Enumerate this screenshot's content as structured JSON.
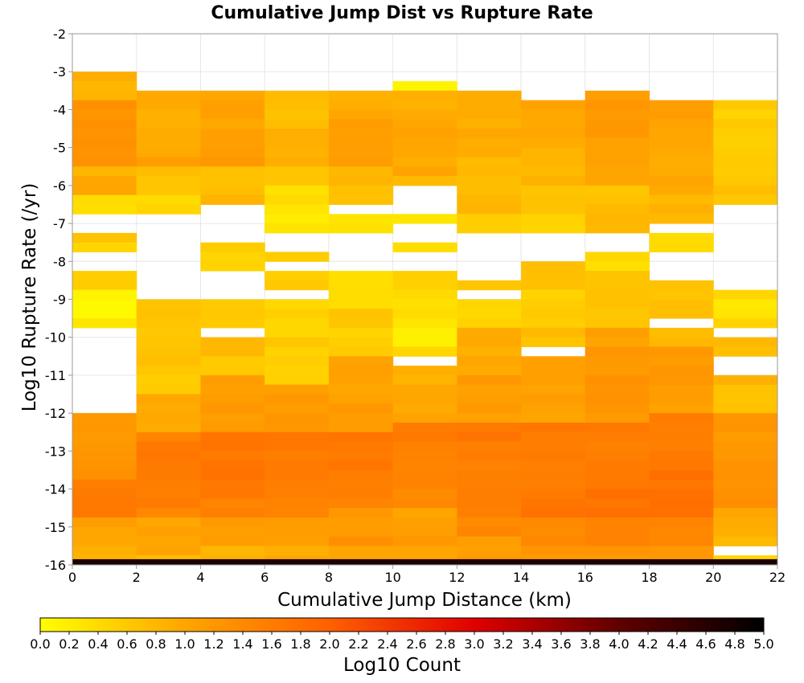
{
  "chart_data": {
    "type": "heatmap",
    "title": "Cumulative Jump Dist vs Rupture Rate",
    "xlabel": "Cumulative Jump Distance (km)",
    "ylabel": "Log10 Rupture Rate (/yr)",
    "xlim": [
      0,
      22
    ],
    "ylim": [
      -16,
      -2
    ],
    "x_ticks": [
      "0",
      "2",
      "4",
      "6",
      "8",
      "10",
      "12",
      "14",
      "16",
      "18",
      "20",
      "22"
    ],
    "y_ticks": [
      "-2",
      "-3",
      "-4",
      "-5",
      "-6",
      "-7",
      "-8",
      "-9",
      "-10",
      "-11",
      "-12",
      "-13",
      "-14",
      "-15",
      "-16"
    ],
    "x_bin_width": 2,
    "y_bin_height": 0.25,
    "grid": true,
    "colorbar": {
      "label": "Log10 Count",
      "range": [
        0,
        5
      ],
      "ticks": [
        "0.0",
        "0.2",
        "0.4",
        "0.6",
        "0.8",
        "1.0",
        "1.2",
        "1.4",
        "1.6",
        "1.8",
        "2.0",
        "2.2",
        "2.4",
        "2.6",
        "2.8",
        "3.0",
        "3.2",
        "3.4",
        "3.6",
        "3.8",
        "4.0",
        "4.2",
        "4.4",
        "4.6",
        "4.8",
        "5.0"
      ],
      "colors": [
        "#ffff00",
        "#ffa500",
        "#ff6000",
        "#e00000",
        "#600000",
        "#000000"
      ]
    },
    "columns": [
      {
        "x": [
          0,
          2
        ],
        "top": -3.0,
        "cells": [
          {
            "from": -3.75,
            "v": 0.8
          },
          {
            "from": -5.5,
            "v": 1.35
          },
          {
            "from": -6.25,
            "v": 0.9
          },
          {
            "from": -6.75,
            "v": 0.3
          },
          {
            "from": -7.25,
            "v": null
          },
          {
            "from": -7.75,
            "v": 0.6
          },
          {
            "from": -8.25,
            "v": null
          },
          {
            "from": -8.75,
            "v": 0.6
          },
          {
            "from": -9.75,
            "v": 0.2
          },
          {
            "from": -12.0,
            "v": null
          },
          {
            "from": -13.75,
            "v": 1.2
          },
          {
            "from": -14.75,
            "v": 1.55
          },
          {
            "from": -15.75,
            "v": 1.0
          },
          {
            "from": -16.0,
            "v": 0.85
          }
        ]
      },
      {
        "x": [
          2,
          4
        ],
        "top": -3.5,
        "cells": [
          {
            "from": -5.5,
            "v": 1.0
          },
          {
            "from": -6.25,
            "v": 0.6
          },
          {
            "from": -6.75,
            "v": 0.4
          },
          {
            "from": -9.0,
            "v": null
          },
          {
            "from": -11.5,
            "v": 0.6
          },
          {
            "from": -12.5,
            "v": 1.0
          },
          {
            "from": -14.75,
            "v": 1.55
          },
          {
            "from": -15.75,
            "v": 1.1
          },
          {
            "from": -16.0,
            "v": 0.8
          }
        ]
      },
      {
        "x": [
          4,
          6
        ],
        "top": -3.5,
        "cells": [
          {
            "from": -5.5,
            "v": 1.1
          },
          {
            "from": -6.25,
            "v": 0.6
          },
          {
            "from": -6.5,
            "v": 0.8
          },
          {
            "from": -7.5,
            "v": null
          },
          {
            "from": -8.25,
            "v": 0.6
          },
          {
            "from": -9.0,
            "v": null
          },
          {
            "from": -9.75,
            "v": 0.5
          },
          {
            "from": -10.0,
            "v": null
          },
          {
            "from": -11.0,
            "v": 0.7
          },
          {
            "from": -12.5,
            "v": 1.2
          },
          {
            "from": -14.75,
            "v": 1.6
          },
          {
            "from": -15.5,
            "v": 1.2
          },
          {
            "from": -16.0,
            "v": 0.9
          }
        ]
      },
      {
        "x": [
          6,
          8
        ],
        "top": -3.5,
        "cells": [
          {
            "from": -5.5,
            "v": 0.8
          },
          {
            "from": -6.0,
            "v": 0.6
          },
          {
            "from": -7.25,
            "v": 0.3
          },
          {
            "from": -7.75,
            "v": null
          },
          {
            "from": -8.0,
            "v": 0.6
          },
          {
            "from": -8.25,
            "v": null
          },
          {
            "from": -8.75,
            "v": 0.5
          },
          {
            "from": -9.0,
            "v": null
          },
          {
            "from": -10.0,
            "v": 0.4
          },
          {
            "from": -11.25,
            "v": 0.6
          },
          {
            "from": -12.5,
            "v": 1.2
          },
          {
            "from": -14.75,
            "v": 1.55
          },
          {
            "from": -15.5,
            "v": 1.2
          },
          {
            "from": -16.0,
            "v": 0.9
          }
        ]
      },
      {
        "x": [
          8,
          10
        ],
        "top": -3.5,
        "cells": [
          {
            "from": -5.5,
            "v": 1.0
          },
          {
            "from": -6.5,
            "v": 0.75
          },
          {
            "from": -6.75,
            "v": null
          },
          {
            "from": -7.25,
            "v": 0.4
          },
          {
            "from": -8.25,
            "v": null
          },
          {
            "from": -9.25,
            "v": 0.35
          },
          {
            "from": -10.5,
            "v": 0.6
          },
          {
            "from": -12.5,
            "v": 1.1
          },
          {
            "from": -14.5,
            "v": 1.6
          },
          {
            "from": -15.5,
            "v": 1.2
          },
          {
            "from": -16.0,
            "v": 0.9
          }
        ]
      },
      {
        "x": [
          10,
          12
        ],
        "top": -3.25,
        "cells": [
          {
            "from": -3.5,
            "v": 0.2
          },
          {
            "from": -6.0,
            "v": 0.9
          },
          {
            "from": -6.75,
            "v": null
          },
          {
            "from": -7.0,
            "v": 0.4
          },
          {
            "from": -7.5,
            "v": null
          },
          {
            "from": -7.75,
            "v": 0.3
          },
          {
            "from": -8.25,
            "v": null
          },
          {
            "from": -8.75,
            "v": 0.4
          },
          {
            "from": -10.25,
            "v": 0.3
          },
          {
            "from": -10.5,
            "v": 0.6
          },
          {
            "from": -10.75,
            "v": null
          },
          {
            "from": -12.25,
            "v": 0.9
          },
          {
            "from": -14.5,
            "v": 1.5
          },
          {
            "from": -15.5,
            "v": 1.1
          },
          {
            "from": -16.0,
            "v": 0.9
          }
        ]
      },
      {
        "x": [
          12,
          14
        ],
        "top": -3.5,
        "cells": [
          {
            "from": -6.75,
            "v": 0.85
          },
          {
            "from": -7.25,
            "v": 0.6
          },
          {
            "from": -8.5,
            "v": null
          },
          {
            "from": -8.75,
            "v": 0.6
          },
          {
            "from": -9.0,
            "v": null
          },
          {
            "from": -9.75,
            "v": 0.5
          },
          {
            "from": -10.5,
            "v": 1.0
          },
          {
            "from": -12.25,
            "v": 1.05
          },
          {
            "from": -14.75,
            "v": 1.6
          },
          {
            "from": -15.25,
            "v": 1.35
          },
          {
            "from": -16.0,
            "v": 1.05
          }
        ]
      },
      {
        "x": [
          14,
          16
        ],
        "top": -3.75,
        "cells": [
          {
            "from": -6.0,
            "v": 0.9
          },
          {
            "from": -6.75,
            "v": 0.7
          },
          {
            "from": -7.25,
            "v": 0.4
          },
          {
            "from": -8.0,
            "v": null
          },
          {
            "from": -9.75,
            "v": 0.6
          },
          {
            "from": -10.25,
            "v": 0.8
          },
          {
            "from": -10.5,
            "v": null
          },
          {
            "from": -12.25,
            "v": 1.0
          },
          {
            "from": -14.75,
            "v": 1.65
          },
          {
            "from": -15.5,
            "v": 1.35
          },
          {
            "from": -16.0,
            "v": 1.1
          }
        ]
      },
      {
        "x": [
          16,
          18
        ],
        "top": -3.5,
        "cells": [
          {
            "from": -6.0,
            "v": 1.1
          },
          {
            "from": -7.25,
            "v": 0.75
          },
          {
            "from": -7.75,
            "v": null
          },
          {
            "from": -8.25,
            "v": 0.35
          },
          {
            "from": -9.75,
            "v": 0.75
          },
          {
            "from": -12.25,
            "v": 1.15
          },
          {
            "from": -14.75,
            "v": 1.65
          },
          {
            "from": -15.5,
            "v": 1.4
          },
          {
            "from": -16.0,
            "v": 1.15
          }
        ]
      },
      {
        "x": [
          18,
          20
        ],
        "top": -3.75,
        "cells": [
          {
            "from": -6.25,
            "v": 1.05
          },
          {
            "from": -7.0,
            "v": 0.75
          },
          {
            "from": -7.25,
            "v": null
          },
          {
            "from": -7.75,
            "v": 0.3
          },
          {
            "from": -8.5,
            "v": null
          },
          {
            "from": -9.5,
            "v": 0.75
          },
          {
            "from": -9.75,
            "v": null
          },
          {
            "from": -10.25,
            "v": 0.7
          },
          {
            "from": -12.0,
            "v": 1.1
          },
          {
            "from": -14.75,
            "v": 1.65
          },
          {
            "from": -15.5,
            "v": 1.4
          },
          {
            "from": -16.0,
            "v": 1.2
          }
        ]
      },
      {
        "x": [
          20,
          22
        ],
        "top": -3.75,
        "cells": [
          {
            "from": -6.5,
            "v": 0.6
          },
          {
            "from": -8.75,
            "v": null
          },
          {
            "from": -9.0,
            "v": 0.55
          },
          {
            "from": -9.75,
            "v": 0.35
          },
          {
            "from": -10.0,
            "v": null
          },
          {
            "from": -10.5,
            "v": 0.7
          },
          {
            "from": -11.0,
            "v": null
          },
          {
            "from": -12.0,
            "v": 0.75
          },
          {
            "from": -14.5,
            "v": 1.25
          },
          {
            "from": -15.5,
            "v": 0.9
          },
          {
            "from": -15.75,
            "v": null
          },
          {
            "from": -16.0,
            "v": 0.5
          }
        ]
      }
    ],
    "bottom_row": {
      "y": [
        -16.0,
        -15.85
      ],
      "v": 4.7
    }
  }
}
